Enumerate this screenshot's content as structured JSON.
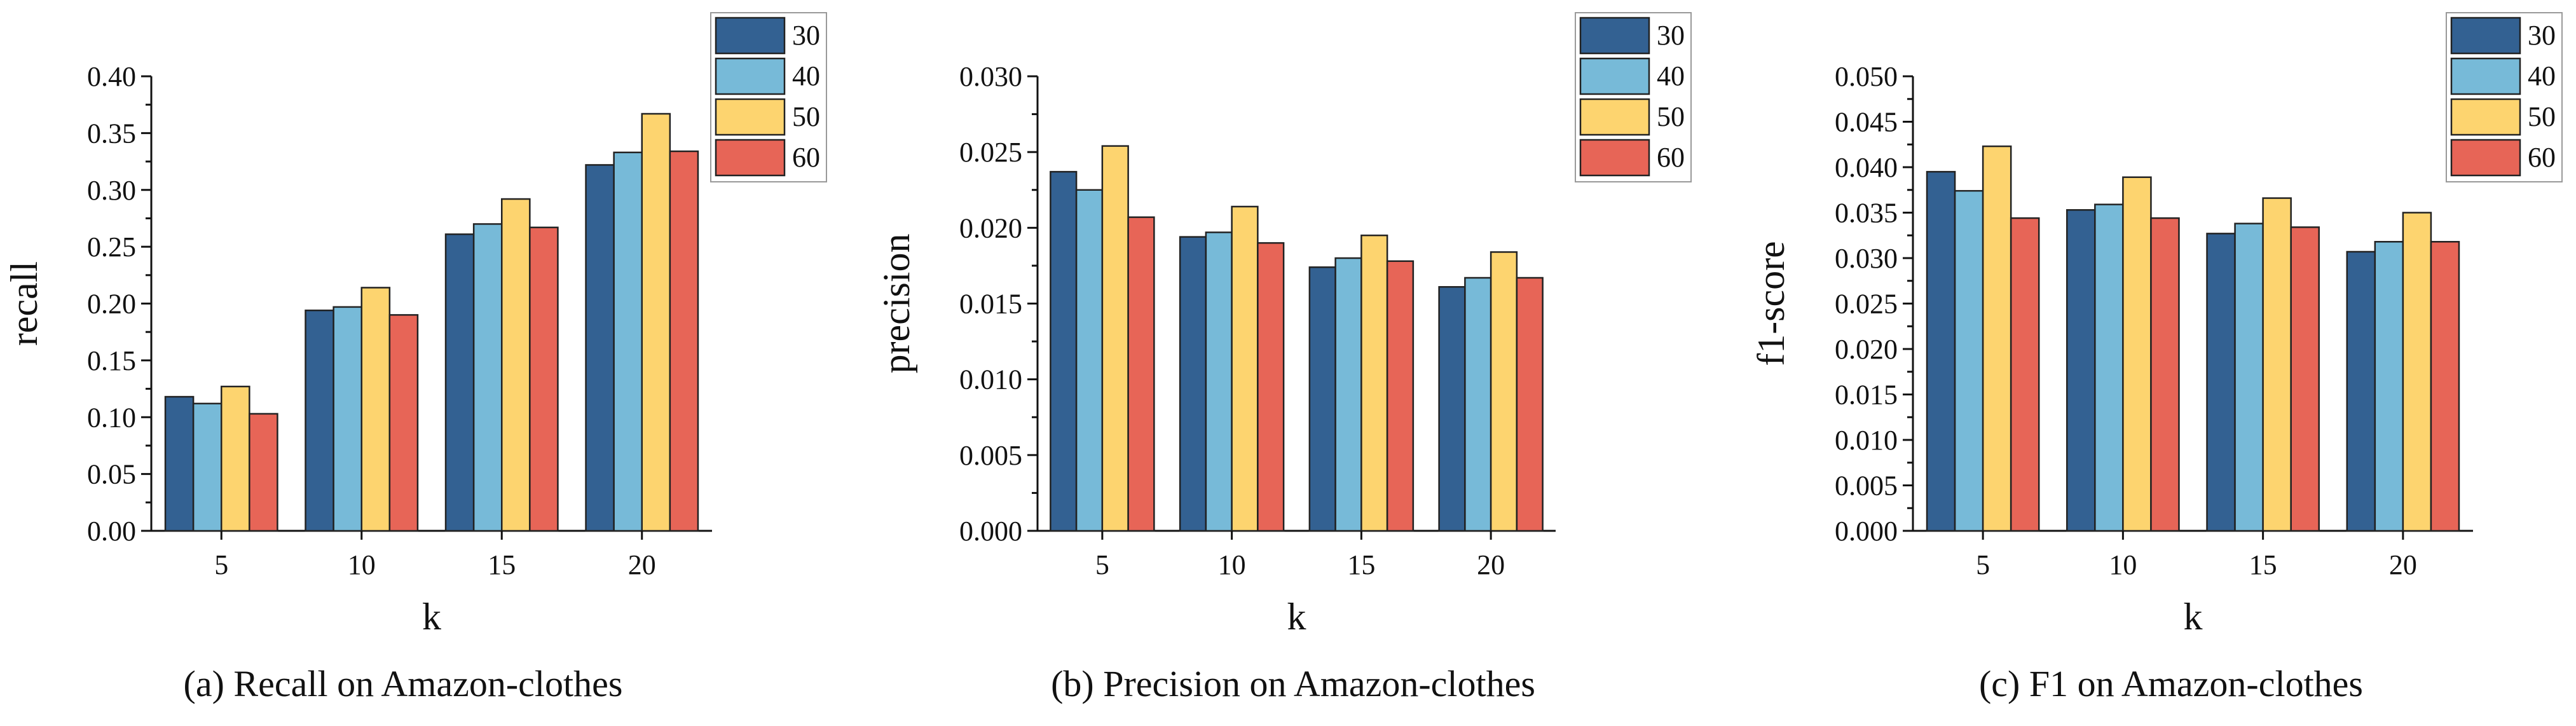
{
  "colors": {
    "30": "#336192",
    "40": "#77bad8",
    "50": "#fdd46f",
    "60": "#e76557"
  },
  "chart_data": [
    {
      "type": "bar",
      "caption": "(a)  Recall on Amazon-clothes",
      "xlabel": "k",
      "ylabel": "recall",
      "categories": [
        "5",
        "10",
        "15",
        "20"
      ],
      "ylim": [
        0,
        0.4
      ],
      "yticks": [
        "0.00",
        "0.05",
        "0.10",
        "0.15",
        "0.20",
        "0.25",
        "0.30",
        "0.35",
        "0.40"
      ],
      "series": [
        {
          "name": "30",
          "values": [
            0.118,
            0.194,
            0.261,
            0.322
          ]
        },
        {
          "name": "40",
          "values": [
            0.112,
            0.197,
            0.27,
            0.333
          ]
        },
        {
          "name": "50",
          "values": [
            0.127,
            0.214,
            0.292,
            0.367
          ]
        },
        {
          "name": "60",
          "values": [
            0.103,
            0.19,
            0.267,
            0.334
          ]
        }
      ],
      "legend": "top-right"
    },
    {
      "type": "bar",
      "caption": "(b)  Precision on Amazon-clothes",
      "xlabel": "k",
      "ylabel": "precision",
      "categories": [
        "5",
        "10",
        "15",
        "20"
      ],
      "ylim": [
        0,
        0.03
      ],
      "yticks": [
        "0.000",
        "0.005",
        "0.010",
        "0.015",
        "0.020",
        "0.025",
        "0.030"
      ],
      "series": [
        {
          "name": "30",
          "values": [
            0.0237,
            0.0194,
            0.0174,
            0.0161
          ]
        },
        {
          "name": "40",
          "values": [
            0.0225,
            0.0197,
            0.018,
            0.0167
          ]
        },
        {
          "name": "50",
          "values": [
            0.0254,
            0.0214,
            0.0195,
            0.0184
          ]
        },
        {
          "name": "60",
          "values": [
            0.0207,
            0.019,
            0.0178,
            0.0167
          ]
        }
      ],
      "legend": "top-right"
    },
    {
      "type": "bar",
      "caption": "(c)  F1 on Amazon-clothes",
      "xlabel": "k",
      "ylabel": "f1-score",
      "categories": [
        "5",
        "10",
        "15",
        "20"
      ],
      "ylim": [
        0,
        0.05
      ],
      "yticks": [
        "0.000",
        "0.005",
        "0.010",
        "0.015",
        "0.020",
        "0.025",
        "0.030",
        "0.035",
        "0.040",
        "0.045",
        "0.050"
      ],
      "series": [
        {
          "name": "30",
          "values": [
            0.0395,
            0.0353,
            0.0327,
            0.0307
          ]
        },
        {
          "name": "40",
          "values": [
            0.0374,
            0.0359,
            0.0338,
            0.0318
          ]
        },
        {
          "name": "50",
          "values": [
            0.0423,
            0.0389,
            0.0366,
            0.035
          ]
        },
        {
          "name": "60",
          "values": [
            0.0344,
            0.0344,
            0.0334,
            0.0318
          ]
        }
      ],
      "legend": "top-right"
    }
  ]
}
